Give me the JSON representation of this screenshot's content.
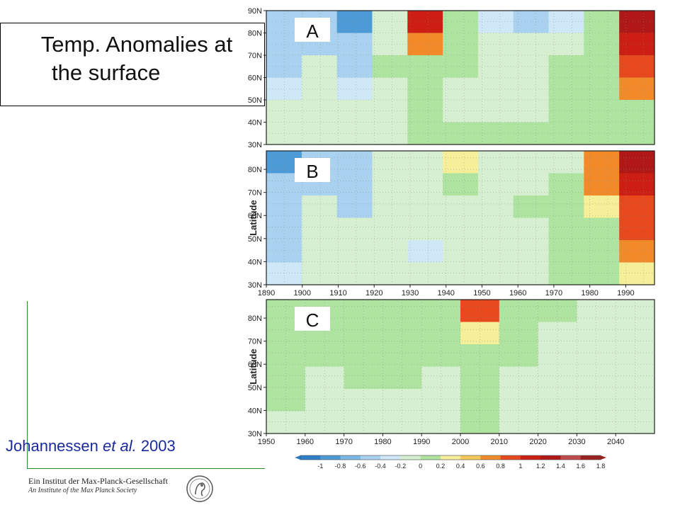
{
  "slide": {
    "title_line1": "Temp. Anomalies at",
    "title_line2": "the surface",
    "citation_author": "Johannessen ",
    "citation_etal": "et al.",
    "citation_year": " 2003",
    "footer_line1": "Ein Institut der Max-Planck-Gesellschaft",
    "footer_line2": "An Institute of the Max Planck Society"
  },
  "colors": {
    "guide_line": "#2e8b2e",
    "citation": "#1a2a9e",
    "scale": [
      "#2c7fc8",
      "#4d9bd6",
      "#7bb8e6",
      "#a8d2f0",
      "#cfe8f7",
      "#d6efd0",
      "#aee3a0",
      "#f6ef9a",
      "#f5c85a",
      "#f28a2a",
      "#e8481e",
      "#cc1e12",
      "#b01818",
      "#c24a4a",
      "#9b2020"
    ]
  },
  "chart_data": [
    {
      "type": "heatmap",
      "panel_label": "A",
      "ylabel": "",
      "x_tick_labels": [],
      "y_tick_labels": [
        "30N",
        "40N",
        "50N",
        "60N",
        "70N",
        "80N",
        "90N"
      ],
      "xlim": [
        1890,
        1998
      ],
      "ylim": [
        30,
        90
      ],
      "grid": true,
      "rows_lat": [
        85,
        75,
        65,
        55,
        45,
        35
      ],
      "cols_year": [
        1895,
        1905,
        1915,
        1925,
        1935,
        1945,
        1955,
        1965,
        1975,
        1985,
        1995
      ],
      "values": [
        [
          -0.5,
          -0.4,
          -0.8,
          -0.2,
          1.0,
          0.2,
          -0.3,
          -0.5,
          -0.3,
          0.0,
          1.4
        ],
        [
          -0.4,
          -0.4,
          -0.5,
          -0.1,
          0.6,
          0.2,
          -0.2,
          -0.2,
          -0.1,
          0.0,
          1.0
        ],
        [
          -0.5,
          -0.2,
          -0.4,
          0.0,
          0.2,
          0.0,
          -0.2,
          -0.1,
          0.0,
          0.0,
          0.8
        ],
        [
          -0.3,
          -0.2,
          -0.3,
          -0.2,
          0.0,
          -0.2,
          -0.2,
          -0.2,
          0.0,
          0.0,
          0.6
        ],
        [
          -0.2,
          -0.2,
          -0.2,
          -0.1,
          0.0,
          -0.2,
          -0.1,
          -0.1,
          0.0,
          0.0,
          0.2
        ],
        [
          -0.2,
          -0.2,
          -0.2,
          -0.1,
          0.0,
          0.0,
          0.0,
          0.0,
          0.0,
          0.0,
          0.2
        ]
      ]
    },
    {
      "type": "heatmap",
      "panel_label": "B",
      "ylabel": "Latitude",
      "x_tick_labels": [
        "1890",
        "1900",
        "1910",
        "1920",
        "1930",
        "1940",
        "1950",
        "1960",
        "1970",
        "1980",
        "1990"
      ],
      "y_tick_labels": [
        "30N",
        "40N",
        "50N",
        "60N",
        "70N",
        "80N"
      ],
      "xlim": [
        1890,
        1998
      ],
      "ylim": [
        30,
        88
      ],
      "grid": true,
      "rows_lat": [
        85,
        75,
        65,
        55,
        45,
        35
      ],
      "cols_year": [
        1895,
        1905,
        1915,
        1925,
        1935,
        1945,
        1955,
        1965,
        1975,
        1985,
        1995
      ],
      "values": [
        [
          -0.8,
          -0.6,
          -0.4,
          -0.2,
          -0.1,
          0.3,
          -0.1,
          -0.2,
          -0.1,
          0.6,
          1.2
        ],
        [
          -0.6,
          -0.5,
          -0.4,
          -0.1,
          -0.1,
          0.0,
          -0.1,
          -0.1,
          0.0,
          0.6,
          1.0
        ],
        [
          -0.4,
          -0.2,
          -0.4,
          -0.1,
          -0.1,
          -0.2,
          -0.2,
          0.0,
          0.0,
          0.4,
          0.8
        ],
        [
          -0.4,
          -0.2,
          -0.2,
          -0.2,
          -0.2,
          -0.2,
          -0.1,
          -0.1,
          0.0,
          0.2,
          0.8
        ],
        [
          -0.4,
          -0.2,
          -0.2,
          -0.2,
          -0.3,
          -0.2,
          -0.2,
          -0.2,
          0.0,
          0.2,
          0.6
        ],
        [
          -0.3,
          -0.2,
          -0.2,
          -0.2,
          -0.2,
          -0.2,
          -0.1,
          -0.1,
          0.0,
          0.1,
          0.4
        ]
      ]
    },
    {
      "type": "heatmap",
      "panel_label": "C",
      "ylabel": "Latitude",
      "x_tick_labels": [
        "1950",
        "1960",
        "1970",
        "1980",
        "1990",
        "2000",
        "2010",
        "2020",
        "2030",
        "2040"
      ],
      "y_tick_labels": [
        "30N",
        "40N",
        "50N",
        "60N",
        "70N",
        "80N"
      ],
      "xlim": [
        1950,
        2050
      ],
      "ylim": [
        30,
        88
      ],
      "grid": true,
      "rows_lat": [
        85,
        75,
        65,
        55,
        45,
        35
      ],
      "cols_year": [
        1955,
        1965,
        1975,
        1985,
        1995,
        2005,
        2015,
        2025,
        2035,
        2045
      ],
      "values": [
        [
          0.2,
          0.2,
          0.0,
          0.2,
          0.0,
          0.8,
          0.0,
          0.0,
          -0.1,
          -0.2
        ],
        [
          0.1,
          0.0,
          0.1,
          0.0,
          0.0,
          0.3,
          0.0,
          -0.1,
          -0.2,
          -0.2
        ],
        [
          0.0,
          0.0,
          0.1,
          0.0,
          0.0,
          0.2,
          0.0,
          -0.1,
          -0.1,
          -0.2
        ],
        [
          0.0,
          -0.1,
          0.0,
          0.0,
          -0.1,
          0.1,
          -0.1,
          -0.1,
          -0.1,
          -0.2
        ],
        [
          0.0,
          -0.2,
          -0.1,
          -0.1,
          -0.1,
          0.1,
          -0.1,
          -0.1,
          -0.1,
          -0.1
        ],
        [
          -0.1,
          -0.1,
          -0.1,
          -0.1,
          -0.1,
          0.0,
          -0.1,
          -0.1,
          -0.1,
          -0.1
        ]
      ]
    },
    {
      "type": "colorbar",
      "tick_labels": [
        "-1",
        "-0.8",
        "-0.6",
        "-0.4",
        "-0.2",
        "0",
        "0.2",
        "0.4",
        "0.6",
        "0.8",
        "1",
        "1.2",
        "1.4",
        "1.6",
        "1.8"
      ]
    }
  ]
}
